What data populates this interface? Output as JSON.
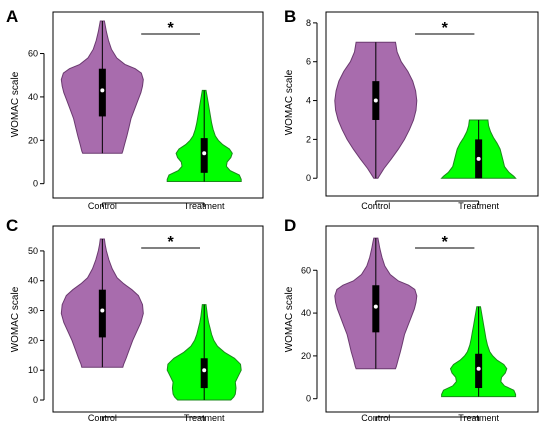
{
  "colors": {
    "control": "#a86cad",
    "control_stroke": "#6b3a70",
    "treatment": "#00ff00",
    "treatment_stroke": "#1a8a1a"
  },
  "chart_data": [
    {
      "panel": "A",
      "type": "violin",
      "ylabel": "WOMAC scale",
      "yticks": [
        0,
        20,
        40,
        60
      ],
      "ylim": [
        -2,
        75
      ],
      "categories": [
        "Control",
        "Treatment"
      ],
      "significance": "*",
      "series": [
        {
          "name": "Control",
          "color_key": "control",
          "min": 14,
          "q1": 31,
          "median": 43,
          "q3": 53,
          "max": 75,
          "density": [
            [
              14,
              0.48
            ],
            [
              15,
              0.5
            ],
            [
              18,
              0.54
            ],
            [
              22,
              0.6
            ],
            [
              26,
              0.65
            ],
            [
              30,
              0.7
            ],
            [
              34,
              0.78
            ],
            [
              38,
              0.86
            ],
            [
              42,
              0.94
            ],
            [
              45,
              0.98
            ],
            [
              48,
              1.0
            ],
            [
              51,
              0.95
            ],
            [
              53,
              0.8
            ],
            [
              55,
              0.55
            ],
            [
              58,
              0.35
            ],
            [
              62,
              0.22
            ],
            [
              66,
              0.15
            ],
            [
              70,
              0.1
            ],
            [
              73,
              0.07
            ],
            [
              75,
              0.05
            ]
          ]
        },
        {
          "name": "Treatment",
          "color_key": "treatment",
          "min": 1,
          "q1": 5,
          "median": 14,
          "q3": 21,
          "max": 43,
          "density": [
            [
              1,
              1.0
            ],
            [
              2,
              1.0
            ],
            [
              4,
              0.95
            ],
            [
              6,
              0.7
            ],
            [
              8,
              0.6
            ],
            [
              10,
              0.62
            ],
            [
              12,
              0.72
            ],
            [
              14,
              0.76
            ],
            [
              16,
              0.68
            ],
            [
              18,
              0.5
            ],
            [
              20,
              0.38
            ],
            [
              22,
              0.3
            ],
            [
              25,
              0.24
            ],
            [
              28,
              0.2
            ],
            [
              31,
              0.17
            ],
            [
              34,
              0.14
            ],
            [
              37,
              0.11
            ],
            [
              40,
              0.08
            ],
            [
              43,
              0.05
            ]
          ]
        }
      ]
    },
    {
      "panel": "B",
      "type": "violin",
      "ylabel": "WOMAC scale",
      "yticks": [
        0,
        2,
        4,
        6,
        8
      ],
      "ylim": [
        -0.4,
        8.2
      ],
      "categories": [
        "Control",
        "Treatment"
      ],
      "significance": "*",
      "series": [
        {
          "name": "Control",
          "color_key": "control",
          "min": 0,
          "q1": 3,
          "median": 4,
          "q3": 5,
          "max": 7,
          "density": [
            [
              0,
              0.05
            ],
            [
              0.5,
              0.2
            ],
            [
              1,
              0.38
            ],
            [
              1.5,
              0.55
            ],
            [
              2,
              0.7
            ],
            [
              2.5,
              0.82
            ],
            [
              3,
              0.92
            ],
            [
              3.5,
              0.98
            ],
            [
              4,
              1.0
            ],
            [
              4.5,
              0.97
            ],
            [
              5,
              0.9
            ],
            [
              5.5,
              0.78
            ],
            [
              6,
              0.62
            ],
            [
              6.5,
              0.52
            ],
            [
              7,
              0.48
            ]
          ]
        },
        {
          "name": "Treatment",
          "color_key": "treatment",
          "min": 0,
          "q1": 0,
          "median": 1,
          "q3": 2,
          "max": 3,
          "density": [
            [
              0,
              1.0
            ],
            [
              0.1,
              0.95
            ],
            [
              0.3,
              0.82
            ],
            [
              0.6,
              0.7
            ],
            [
              0.9,
              0.66
            ],
            [
              1.2,
              0.62
            ],
            [
              1.5,
              0.58
            ],
            [
              1.8,
              0.5
            ],
            [
              2.1,
              0.4
            ],
            [
              2.4,
              0.32
            ],
            [
              2.7,
              0.27
            ],
            [
              3,
              0.25
            ]
          ]
        }
      ]
    },
    {
      "panel": "C",
      "type": "violin",
      "ylabel": "WOMAC scale",
      "yticks": [
        0,
        10,
        20,
        30,
        40,
        50
      ],
      "ylim": [
        -1,
        55
      ],
      "categories": [
        "Control",
        "Treatment"
      ],
      "significance": "*",
      "series": [
        {
          "name": "Control",
          "color_key": "control",
          "min": 11,
          "q1": 21,
          "median": 30,
          "q3": 37,
          "max": 54,
          "density": [
            [
              11,
              0.5
            ],
            [
              12,
              0.52
            ],
            [
              14,
              0.58
            ],
            [
              17,
              0.66
            ],
            [
              20,
              0.74
            ],
            [
              23,
              0.84
            ],
            [
              26,
              0.94
            ],
            [
              29,
              1.0
            ],
            [
              32,
              0.98
            ],
            [
              35,
              0.88
            ],
            [
              37,
              0.72
            ],
            [
              39,
              0.52
            ],
            [
              41,
              0.36
            ],
            [
              44,
              0.24
            ],
            [
              47,
              0.16
            ],
            [
              50,
              0.1
            ],
            [
              52,
              0.07
            ],
            [
              54,
              0.05
            ]
          ]
        },
        {
          "name": "Treatment",
          "color_key": "treatment",
          "min": 0,
          "q1": 4,
          "median": 10,
          "q3": 14,
          "max": 32,
          "density": [
            [
              0,
              0.72
            ],
            [
              1,
              0.8
            ],
            [
              2,
              0.84
            ],
            [
              4,
              0.86
            ],
            [
              6,
              0.84
            ],
            [
              8,
              0.92
            ],
            [
              10,
              1.0
            ],
            [
              12,
              0.98
            ],
            [
              14,
              0.82
            ],
            [
              16,
              0.55
            ],
            [
              18,
              0.36
            ],
            [
              20,
              0.26
            ],
            [
              22,
              0.2
            ],
            [
              24,
              0.16
            ],
            [
              26,
              0.12
            ],
            [
              28,
              0.09
            ],
            [
              30,
              0.07
            ],
            [
              32,
              0.05
            ]
          ]
        }
      ]
    },
    {
      "panel": "D",
      "type": "violin",
      "ylabel": "WOMAC scale",
      "yticks": [
        0,
        20,
        40,
        60
      ],
      "ylim": [
        -2,
        76
      ],
      "categories": [
        "Control",
        "Treatment"
      ],
      "significance": "*",
      "series": [
        {
          "name": "Control",
          "color_key": "control",
          "min": 14,
          "q1": 31,
          "median": 43,
          "q3": 53,
          "max": 75,
          "density": [
            [
              14,
              0.48
            ],
            [
              15,
              0.5
            ],
            [
              18,
              0.54
            ],
            [
              22,
              0.6
            ],
            [
              26,
              0.65
            ],
            [
              30,
              0.7
            ],
            [
              34,
              0.78
            ],
            [
              38,
              0.86
            ],
            [
              42,
              0.94
            ],
            [
              45,
              0.98
            ],
            [
              48,
              1.0
            ],
            [
              51,
              0.95
            ],
            [
              53,
              0.8
            ],
            [
              55,
              0.55
            ],
            [
              58,
              0.35
            ],
            [
              62,
              0.22
            ],
            [
              66,
              0.15
            ],
            [
              70,
              0.1
            ],
            [
              73,
              0.07
            ],
            [
              75,
              0.05
            ]
          ]
        },
        {
          "name": "Treatment",
          "color_key": "treatment",
          "min": 1,
          "q1": 5,
          "median": 14,
          "q3": 21,
          "max": 43,
          "density": [
            [
              1,
              1.0
            ],
            [
              2,
              1.0
            ],
            [
              4,
              0.95
            ],
            [
              6,
              0.7
            ],
            [
              8,
              0.6
            ],
            [
              10,
              0.62
            ],
            [
              12,
              0.72
            ],
            [
              14,
              0.76
            ],
            [
              16,
              0.68
            ],
            [
              18,
              0.5
            ],
            [
              20,
              0.38
            ],
            [
              22,
              0.3
            ],
            [
              25,
              0.24
            ],
            [
              28,
              0.2
            ],
            [
              31,
              0.17
            ],
            [
              34,
              0.14
            ],
            [
              37,
              0.11
            ],
            [
              40,
              0.08
            ],
            [
              43,
              0.05
            ]
          ]
        }
      ]
    }
  ]
}
